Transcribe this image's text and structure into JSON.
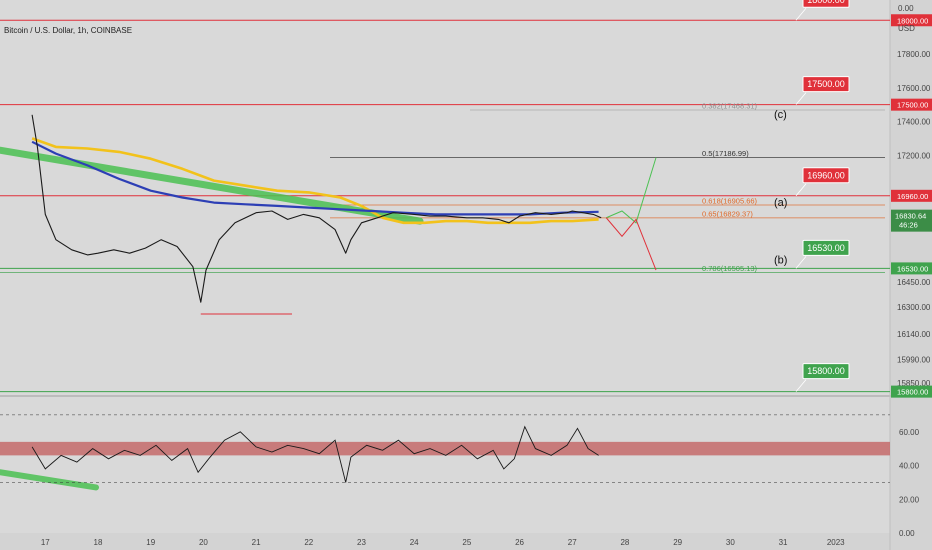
{
  "header": {
    "title": "Bitcoin / U.S. Dollar, 1h, COINBASE"
  },
  "price_axis": {
    "currency": "USD",
    "ticks": [
      "18000.00",
      "17800.00",
      "17600.00",
      "17500.00",
      "17400.00",
      "17200.00",
      "16960.00",
      "16830.64",
      "16530.00",
      "16450.00",
      "16300.00",
      "16140.00",
      "15990.00",
      "15850.00",
      "15800.00"
    ],
    "current_price": "16830.64",
    "countdown": "46:26"
  },
  "rsi_axis": {
    "ticks": [
      "60.00",
      "40.00",
      "20.00",
      "0.00"
    ],
    "top_label": "0.00"
  },
  "colors": {
    "background": "#d9d9d9",
    "red_level": "#e0313a",
    "green_level": "#3fa34d",
    "ma_blue": "#2d3fb5",
    "ma_yellow": "#f2c21b",
    "trend_green": "#4cc153",
    "rsi_band": "#c46a6a",
    "fib_orange": "#e06a2a"
  },
  "chart_data": {
    "type": "line",
    "title": "Bitcoin / U.S. Dollar, 1h, COINBASE",
    "xlabel": "",
    "ylabel": "USD",
    "x_ticks": [
      "17",
      "18",
      "19",
      "20",
      "21",
      "22",
      "23",
      "24",
      "25",
      "26",
      "27",
      "28",
      "29",
      "30",
      "31",
      "2023"
    ],
    "ylim": [
      15780,
      18120
    ],
    "series": [
      {
        "x": [
          16.75,
          16.85,
          17.0,
          17.2,
          17.5,
          17.8,
          18.0,
          18.3,
          18.6,
          18.9,
          19.2,
          19.5,
          19.8,
          19.95,
          20.05,
          20.3,
          20.6,
          21.0,
          21.3,
          21.6,
          21.9,
          22.2,
          22.5,
          22.7,
          22.8,
          23.0,
          23.3,
          23.6,
          24.0,
          24.3,
          24.6,
          25.0,
          25.3,
          25.6,
          25.8,
          26.0,
          26.3,
          26.6,
          26.9,
          27.0,
          27.2,
          27.4,
          27.55
        ],
        "y": [
          17440,
          17250,
          16850,
          16700,
          16640,
          16610,
          16620,
          16640,
          16620,
          16650,
          16700,
          16660,
          16540,
          16330,
          16520,
          16700,
          16800,
          16860,
          16870,
          16820,
          16850,
          16830,
          16760,
          16620,
          16700,
          16800,
          16830,
          16860,
          16850,
          16840,
          16840,
          16830,
          16830,
          16820,
          16800,
          16840,
          16860,
          16850,
          16860,
          16870,
          16860,
          16850,
          16830
        ]
      },
      {
        "x": [
          16.75,
          17.2,
          17.8,
          18.4,
          19.0,
          19.6,
          20.2,
          20.8,
          21.4,
          22.0,
          22.6,
          23.2,
          23.8,
          24.4,
          25.0,
          25.6,
          26.2,
          26.8,
          27.5
        ],
        "y": [
          17280,
          17210,
          17140,
          17060,
          16990,
          16950,
          16920,
          16910,
          16900,
          16890,
          16880,
          16870,
          16860,
          16850,
          16850,
          16850,
          16850,
          16860,
          16865
        ]
      },
      {
        "x": [
          16.75,
          17.2,
          17.8,
          18.4,
          19.0,
          19.6,
          20.2,
          20.8,
          21.4,
          22.0,
          22.6,
          23.0,
          23.4,
          23.8,
          24.2,
          24.6,
          25.0,
          25.4,
          25.8,
          26.2,
          26.6,
          27.0,
          27.5
        ],
        "y": [
          17300,
          17250,
          17240,
          17220,
          17180,
          17120,
          17050,
          17020,
          16990,
          16980,
          16950,
          16900,
          16830,
          16800,
          16800,
          16810,
          16810,
          16800,
          16800,
          16800,
          16810,
          16810,
          16820
        ]
      }
    ],
    "levels": [
      {
        "label": "18000.00",
        "value": 18000,
        "color": "red"
      },
      {
        "label": "17500.00",
        "value": 17500,
        "color": "red"
      },
      {
        "label": "16960.00",
        "value": 16960,
        "color": "red"
      },
      {
        "label": "16530.00",
        "value": 16530,
        "color": "green"
      },
      {
        "label": "15800.00",
        "value": 15800,
        "color": "green"
      }
    ],
    "fib_levels": [
      {
        "label": "0.382(17468.31)",
        "value": 17468.31
      },
      {
        "label": "0.5(17186.99)",
        "value": 17186.99
      },
      {
        "label": "0.618(16905.66)",
        "value": 16905.66
      },
      {
        "label": "0.65(16829.37)",
        "value": 16829.37
      },
      {
        "label": "0.786(16505.13)",
        "value": 16505.13
      }
    ],
    "wave_labels": [
      {
        "label": "(c)",
        "value": 17420
      },
      {
        "label": "(a)",
        "value": 16900
      },
      {
        "label": "(b)",
        "value": 16560
      }
    ],
    "rsi": {
      "ylim": [
        0,
        80
      ],
      "ticks": [
        60,
        40,
        20,
        0
      ],
      "x": [
        16.75,
        17.0,
        17.3,
        17.6,
        17.9,
        18.2,
        18.5,
        18.8,
        19.1,
        19.4,
        19.7,
        19.9,
        20.1,
        20.4,
        20.7,
        21.0,
        21.3,
        21.6,
        21.9,
        22.2,
        22.5,
        22.7,
        22.8,
        23.1,
        23.4,
        23.7,
        24.0,
        24.3,
        24.6,
        24.9,
        25.2,
        25.5,
        25.7,
        25.9,
        26.1,
        26.3,
        26.6,
        26.9,
        27.1,
        27.3,
        27.5
      ],
      "y": [
        51,
        38,
        46,
        42,
        50,
        44,
        49,
        46,
        52,
        43,
        50,
        36,
        44,
        55,
        60,
        51,
        48,
        52,
        50,
        47,
        55,
        30,
        45,
        52,
        49,
        55,
        47,
        50,
        46,
        52,
        44,
        49,
        38,
        44,
        63,
        50,
        46,
        52,
        62,
        50,
        46
      ]
    }
  }
}
